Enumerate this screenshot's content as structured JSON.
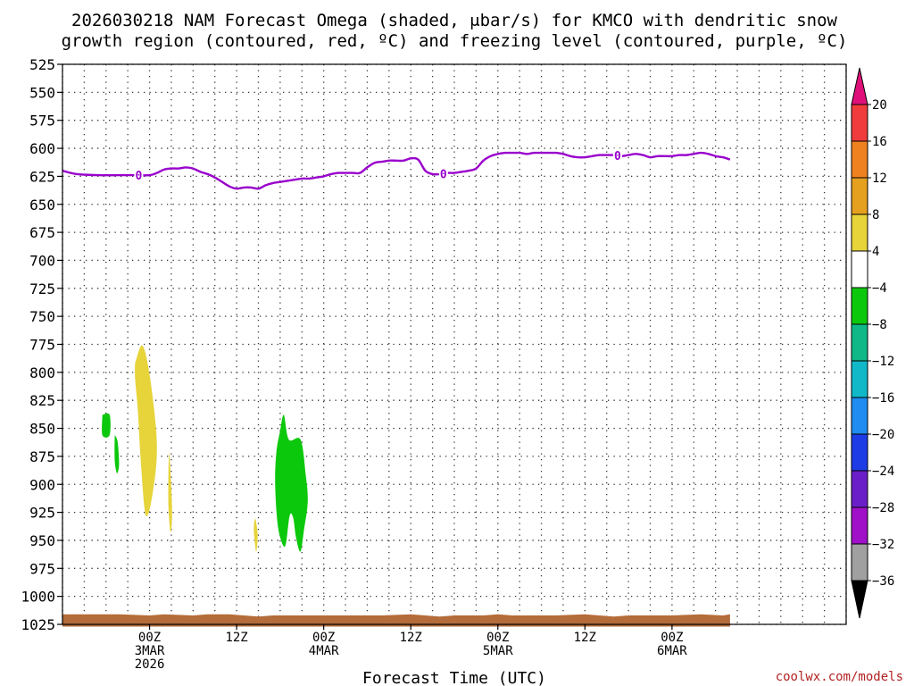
{
  "chart_data": {
    "type": "heatmap",
    "title_line1": "2026030218 NAM Forecast Omega (shaded, μbar/s) for KMCO with dendritic snow",
    "title_line2": "growth region (contoured, red, ºC) and freezing level (contoured, purple, ºC)",
    "xlabel": "Forecast Time (UTC)",
    "credit": "coolwx.com/models",
    "y_axis": {
      "units": "hPa",
      "inverted": true,
      "range": [
        1025,
        525
      ],
      "ticks": [
        525,
        550,
        575,
        600,
        625,
        650,
        675,
        700,
        725,
        750,
        775,
        800,
        825,
        850,
        875,
        900,
        925,
        950,
        975,
        1000,
        1025
      ]
    },
    "x_axis": {
      "range_hours": [
        -12,
        96
      ],
      "ticks": [
        {
          "hour": 0,
          "lines": [
            "00Z",
            "3MAR",
            "2026"
          ]
        },
        {
          "hour": 12,
          "lines": [
            "12Z"
          ]
        },
        {
          "hour": 24,
          "lines": [
            "00Z",
            "4MAR"
          ]
        },
        {
          "hour": 36,
          "lines": [
            "12Z"
          ]
        },
        {
          "hour": 48,
          "lines": [
            "00Z",
            "5MAR"
          ]
        },
        {
          "hour": 60,
          "lines": [
            "12Z"
          ]
        },
        {
          "hour": 72,
          "lines": [
            "00Z",
            "6MAR"
          ]
        }
      ]
    },
    "grid": true,
    "colorbar": {
      "placement": "right",
      "labels": [
        "20",
        "16",
        "12",
        "8",
        "4",
        "−4",
        "−8",
        "−12",
        "−16",
        "−20",
        "−24",
        "−28",
        "−32",
        "−36"
      ],
      "top_arrow_color": "#e0107a",
      "bottom_arrow_color": "#000000",
      "bins": [
        {
          "from": 16,
          "to": 20,
          "color": "#f03c3c"
        },
        {
          "from": 12,
          "to": 16,
          "color": "#ef8120"
        },
        {
          "from": 8,
          "to": 12,
          "color": "#e6a020"
        },
        {
          "from": 4,
          "to": 8,
          "color": "#e6d43a"
        },
        {
          "from": -4,
          "to": 4,
          "color": "#ffffff"
        },
        {
          "from": -8,
          "to": -4,
          "color": "#0cc80c"
        },
        {
          "from": -12,
          "to": -8,
          "color": "#10b888"
        },
        {
          "from": -16,
          "to": -12,
          "color": "#10b8c8"
        },
        {
          "from": -20,
          "to": -16,
          "color": "#1e8cf0"
        },
        {
          "from": -24,
          "to": -20,
          "color": "#1e3ce6"
        },
        {
          "from": -28,
          "to": -24,
          "color": "#6a1ec8"
        },
        {
          "from": -32,
          "to": -28,
          "color": "#a010c8"
        },
        {
          "from": -36,
          "to": -32,
          "color": "#a0a0a0"
        }
      ]
    },
    "omega_regions": [
      {
        "color": "#e6d43a",
        "value_range": [
          4,
          8
        ],
        "points": [
          [
            -2.0,
            792
          ],
          [
            -1.0,
            776
          ],
          [
            0.0,
            802
          ],
          [
            1.0,
            862
          ],
          [
            0.5,
            905
          ],
          [
            -0.5,
            928
          ],
          [
            -1.2,
            880
          ],
          [
            -1.6,
            835
          ],
          [
            -2.0,
            805
          ]
        ]
      },
      {
        "color": "#e6d43a",
        "value_range": [
          4,
          8
        ],
        "points": [
          [
            2.7,
            870
          ],
          [
            2.9,
            890
          ],
          [
            3.1,
            925
          ],
          [
            2.9,
            943
          ],
          [
            2.6,
            920
          ],
          [
            2.6,
            888
          ]
        ]
      },
      {
        "color": "#e6d43a",
        "value_range": [
          4,
          8
        ],
        "points": [
          [
            14.6,
            930
          ],
          [
            14.9,
            945
          ],
          [
            14.7,
            960
          ],
          [
            14.4,
            945
          ],
          [
            14.4,
            935
          ]
        ]
      },
      {
        "color": "#0cc80c",
        "value_range": [
          -8,
          -4
        ],
        "points": [
          [
            -6.5,
            838
          ],
          [
            -5.5,
            838
          ],
          [
            -5.5,
            856
          ],
          [
            -6.5,
            856
          ]
        ]
      },
      {
        "color": "#0cc80c",
        "value_range": [
          -8,
          -4
        ],
        "points": [
          [
            -4.8,
            856
          ],
          [
            -4.4,
            862
          ],
          [
            -4.2,
            882
          ],
          [
            -4.5,
            890
          ],
          [
            -4.8,
            878
          ]
        ]
      },
      {
        "color": "#0cc80c",
        "value_range": [
          -8,
          -4
        ],
        "points": [
          [
            18.0,
            852
          ],
          [
            18.5,
            838
          ],
          [
            19.2,
            860
          ],
          [
            20.8,
            860
          ],
          [
            21.5,
            890
          ],
          [
            21.8,
            915
          ],
          [
            21.3,
            940
          ],
          [
            20.8,
            960
          ],
          [
            20.2,
            948
          ],
          [
            19.8,
            930
          ],
          [
            19.3,
            928
          ],
          [
            18.7,
            955
          ],
          [
            17.9,
            945
          ],
          [
            17.5,
            925
          ],
          [
            17.3,
            895
          ],
          [
            17.5,
            870
          ]
        ]
      }
    ],
    "freezing_level": {
      "color": "#9900cc",
      "value_label": "0",
      "label_hours": [
        -1.5,
        40.5,
        64.5
      ],
      "points": [
        [
          -12,
          620
        ],
        [
          -10,
          623
        ],
        [
          -7,
          624
        ],
        [
          -4,
          624
        ],
        [
          -2,
          624
        ],
        [
          0,
          624
        ],
        [
          1,
          622
        ],
        [
          2,
          619
        ],
        [
          3,
          618
        ],
        [
          4,
          618
        ],
        [
          5,
          617
        ],
        [
          6,
          618
        ],
        [
          7,
          621
        ],
        [
          8,
          623
        ],
        [
          9,
          626
        ],
        [
          10,
          630
        ],
        [
          11,
          634
        ],
        [
          12,
          636
        ],
        [
          13,
          635
        ],
        [
          14,
          635
        ],
        [
          15,
          636
        ],
        [
          16,
          633
        ],
        [
          17,
          631
        ],
        [
          18,
          630
        ],
        [
          19,
          629
        ],
        [
          20,
          628
        ],
        [
          21,
          627
        ],
        [
          22,
          627
        ],
        [
          23,
          626
        ],
        [
          24,
          625
        ],
        [
          25,
          623
        ],
        [
          26,
          622
        ],
        [
          27,
          622
        ],
        [
          28,
          622
        ],
        [
          29,
          622
        ],
        [
          30,
          617
        ],
        [
          31,
          613
        ],
        [
          32,
          612
        ],
        [
          33,
          611
        ],
        [
          34,
          611
        ],
        [
          35,
          611
        ],
        [
          36,
          609
        ],
        [
          37,
          610
        ],
        [
          38,
          620
        ],
        [
          39,
          623
        ],
        [
          40,
          623
        ],
        [
          41,
          622
        ],
        [
          42,
          622
        ],
        [
          43,
          621
        ],
        [
          44,
          620
        ],
        [
          45,
          618
        ],
        [
          46,
          611
        ],
        [
          47,
          607
        ],
        [
          48,
          605
        ],
        [
          49,
          604
        ],
        [
          50,
          604
        ],
        [
          51,
          604
        ],
        [
          52,
          605
        ],
        [
          53,
          604
        ],
        [
          54,
          604
        ],
        [
          55,
          604
        ],
        [
          56,
          604
        ],
        [
          57,
          605
        ],
        [
          58,
          607
        ],
        [
          59,
          608
        ],
        [
          60,
          608
        ],
        [
          61,
          607
        ],
        [
          62,
          606
        ],
        [
          63,
          606
        ],
        [
          64,
          606
        ],
        [
          65,
          607
        ],
        [
          66,
          606
        ],
        [
          67,
          605
        ],
        [
          68,
          606
        ],
        [
          69,
          608
        ],
        [
          70,
          607
        ],
        [
          71,
          607
        ],
        [
          72,
          607
        ],
        [
          73,
          606
        ],
        [
          74,
          606
        ],
        [
          75,
          605
        ],
        [
          76,
          604
        ],
        [
          77,
          605
        ],
        [
          78,
          607
        ],
        [
          79,
          608
        ],
        [
          80,
          610
        ]
      ]
    },
    "ground": {
      "color": "#b36c3a",
      "base_hpa": 1027,
      "points": [
        [
          -12,
          1016
        ],
        [
          -4,
          1016
        ],
        [
          0,
          1017
        ],
        [
          2,
          1016
        ],
        [
          6,
          1017
        ],
        [
          8,
          1016
        ],
        [
          11,
          1016
        ],
        [
          13,
          1017
        ],
        [
          15,
          1018
        ],
        [
          17,
          1017
        ],
        [
          20,
          1017
        ],
        [
          26,
          1017
        ],
        [
          32,
          1017
        ],
        [
          36,
          1016
        ],
        [
          38,
          1017
        ],
        [
          40,
          1018
        ],
        [
          42,
          1017
        ],
        [
          46,
          1017
        ],
        [
          48,
          1016
        ],
        [
          50,
          1017
        ],
        [
          56,
          1017
        ],
        [
          60,
          1016
        ],
        [
          62,
          1017
        ],
        [
          64,
          1018
        ],
        [
          66,
          1017
        ],
        [
          72,
          1017
        ],
        [
          76,
          1016
        ],
        [
          79,
          1017
        ],
        [
          80,
          1016
        ]
      ]
    }
  }
}
